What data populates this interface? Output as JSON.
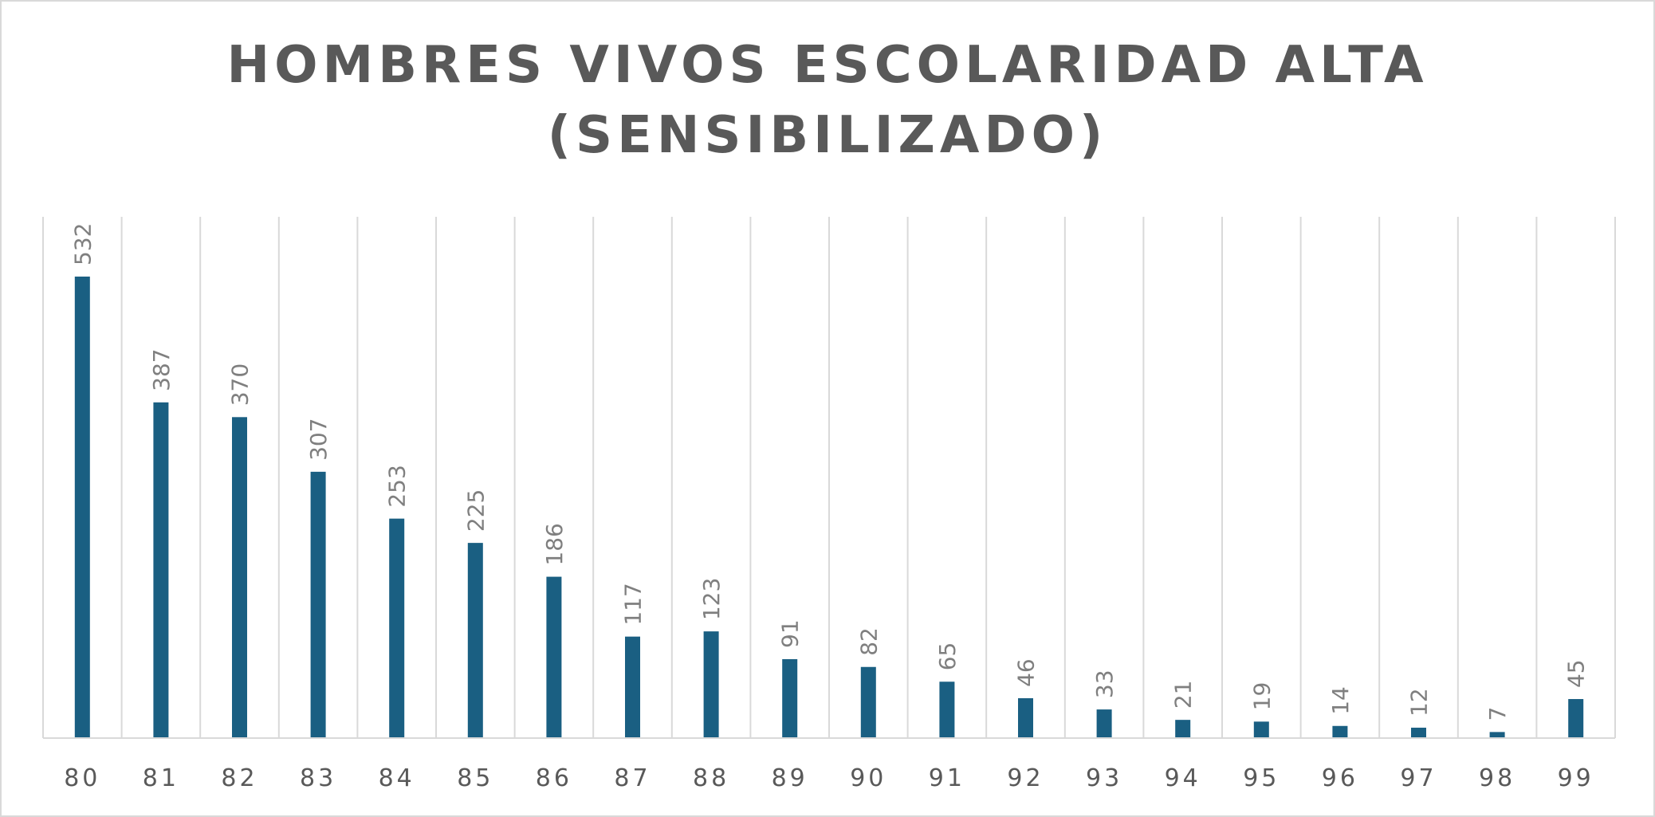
{
  "chart_data": {
    "type": "bar",
    "title": "HOMBRES VIVOS ESCOLARIDAD ALTA\n(SENSIBILIZADO)",
    "categories": [
      "80",
      "81",
      "82",
      "83",
      "84",
      "85",
      "86",
      "87",
      "88",
      "89",
      "90",
      "91",
      "92",
      "93",
      "94",
      "95",
      "96",
      "97",
      "98",
      "99"
    ],
    "values": [
      532,
      387,
      370,
      307,
      253,
      225,
      186,
      117,
      123,
      91,
      82,
      65,
      46,
      33,
      21,
      19,
      14,
      12,
      7,
      45
    ],
    "data_labels": [
      "532",
      "387",
      "370",
      "307",
      "253",
      "225",
      "186",
      "117",
      "123",
      "91",
      "82",
      "65",
      "46",
      "33",
      "21",
      "19",
      "14",
      "12",
      "7",
      "45"
    ],
    "ylim": [
      0,
      600
    ],
    "grid": "vertical",
    "legend": "none",
    "bar_color": "#1a5f82",
    "gridline_color": "#d9d9d9",
    "label_color": "#7f7f7f",
    "tick_color": "#595959"
  }
}
